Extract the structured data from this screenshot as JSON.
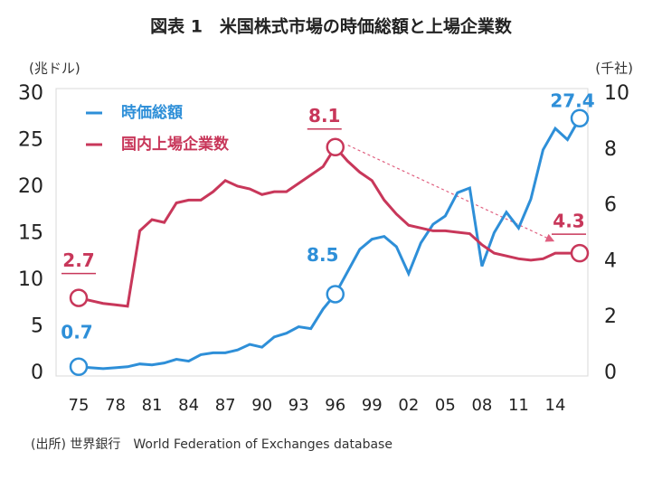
{
  "chart_data": {
    "type": "line",
    "title": "図表 1　米国株式市場の時価総額と上場企業数",
    "y_label": "(兆ドル)",
    "y2_label": "(千社)",
    "source": "(出所) 世界銀行　World Federation of Exchanges database",
    "categories": [
      "75",
      null,
      null,
      "78",
      null,
      null,
      "81",
      null,
      null,
      "84",
      null,
      null,
      "87",
      null,
      null,
      "90",
      null,
      null,
      "93",
      null,
      null,
      "96",
      null,
      null,
      "99",
      null,
      null,
      "02",
      null,
      null,
      "05",
      null,
      null,
      "08",
      null,
      null,
      "11",
      null,
      null,
      "14",
      null,
      null
    ],
    "ylim": [
      0,
      30
    ],
    "yticks": [
      0,
      5,
      10,
      15,
      20,
      25,
      30
    ],
    "y2lim": [
      0,
      10
    ],
    "y2ticks": [
      0,
      2,
      4,
      6,
      8,
      10
    ],
    "series": [
      {
        "name": "時価総額",
        "color": "#2e8fd8",
        "markers": [
          0,
          21,
          41
        ],
        "values": [
          0.7,
          0.6,
          0.5,
          0.6,
          0.7,
          1.0,
          0.9,
          1.1,
          1.5,
          1.3,
          2.0,
          2.2,
          2.2,
          2.5,
          3.1,
          2.8,
          3.9,
          4.3,
          5.0,
          4.8,
          6.9,
          8.5,
          10.9,
          13.3,
          14.4,
          14.7,
          13.6,
          10.7,
          14.0,
          16.0,
          16.9,
          19.4,
          19.9,
          11.5,
          15.1,
          17.3,
          15.6,
          18.7,
          24.0,
          26.3,
          25.1,
          27.4
        ]
      },
      {
        "name": "国内上場企業数",
        "color": "#c8375a",
        "axis": "y2",
        "markers": [
          0,
          21,
          41
        ],
        "values": [
          2.7,
          2.6,
          2.5,
          2.45,
          2.4,
          5.1,
          5.5,
          5.4,
          6.1,
          6.2,
          6.2,
          6.5,
          6.9,
          6.7,
          6.6,
          6.4,
          6.5,
          6.5,
          6.8,
          7.1,
          7.4,
          8.1,
          7.6,
          7.2,
          6.9,
          6.2,
          5.7,
          5.3,
          5.2,
          5.1,
          5.1,
          5.05,
          5.0,
          4.6,
          4.3,
          4.2,
          4.1,
          4.05,
          4.1,
          4.3,
          4.3,
          4.3
        ]
      }
    ]
  }
}
